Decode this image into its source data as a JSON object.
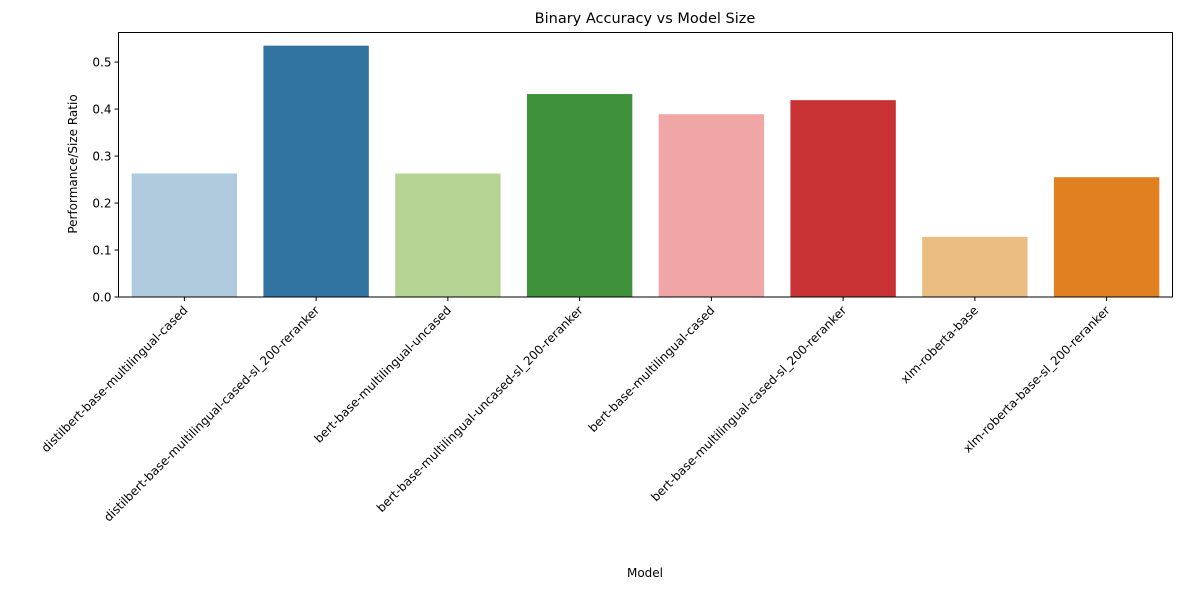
{
  "chart_data": {
    "type": "bar",
    "title": "Binary Accuracy vs Model Size",
    "xlabel": "Model",
    "ylabel": "Performance/Size Ratio",
    "ylim": [
      0,
      0.563
    ],
    "yticks": [
      "0.0",
      "0.1",
      "0.2",
      "0.3",
      "0.4",
      "0.5"
    ],
    "grid": false,
    "categories": [
      "distilbert-base-multilingual-cased",
      "distilbert-base-multilingual-cased-sl_200-reranker",
      "bert-base-multilingual-uncased",
      "bert-base-multilingual-uncased-sl_200-reranker",
      "bert-base-multilingual-cased",
      "bert-base-multilingual-cased-sl_200-reranker",
      "xlm-roberta-base",
      "xlm-roberta-base-sl_200-reranker"
    ],
    "values": [
      0.263,
      0.535,
      0.263,
      0.432,
      0.389,
      0.419,
      0.128,
      0.255
    ],
    "colors": [
      "#afcbdd",
      "#3274a1",
      "#b5d493",
      "#3f923b",
      "#f0a6a5",
      "#c93235",
      "#ebbd80",
      "#e08020"
    ]
  }
}
